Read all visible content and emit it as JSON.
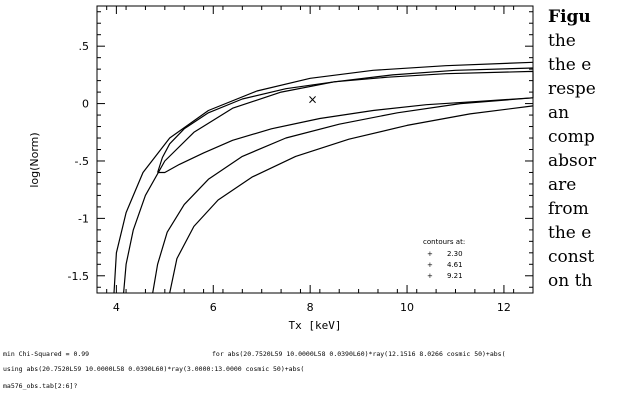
{
  "chart_data": {
    "type": "contour",
    "xlabel": "Tx [keV]",
    "ylabel": "log(Norm)",
    "xlim": [
      3.6,
      12.6
    ],
    "ylim": [
      -1.65,
      0.85
    ],
    "xticks": [
      4,
      6,
      8,
      10,
      12
    ],
    "xtick_labels": [
      "4",
      "6",
      "8",
      "10",
      "12"
    ],
    "yticks": [
      0.5,
      0,
      -0.5,
      -1,
      -1.5
    ],
    "ytick_labels": [
      ".5",
      "0",
      "-.5",
      "-1",
      "-1.5"
    ],
    "best_fit": {
      "x": 8.05,
      "y": 0.03,
      "marker": "×"
    },
    "contour_legend": {
      "title": "contours at:",
      "entries": [
        {
          "marker": "+",
          "label": "2.30"
        },
        {
          "marker": "+",
          "label": "4.61"
        },
        {
          "marker": "+",
          "label": "9.21"
        }
      ]
    },
    "contours": [
      {
        "level": "2.30",
        "points": [
          [
            4.85,
            -0.6
          ],
          [
            4.95,
            -0.47
          ],
          [
            5.1,
            -0.35
          ],
          [
            5.4,
            -0.22
          ],
          [
            5.9,
            -0.08
          ],
          [
            6.6,
            0.04
          ],
          [
            7.5,
            0.13
          ],
          [
            8.5,
            0.19
          ],
          [
            9.6,
            0.23
          ],
          [
            10.8,
            0.26
          ],
          [
            12.6,
            0.28
          ],
          [
            12.6,
            0.05
          ],
          [
            11.5,
            0.02
          ],
          [
            10.4,
            -0.01
          ],
          [
            9.3,
            -0.06
          ],
          [
            8.2,
            -0.13
          ],
          [
            7.2,
            -0.22
          ],
          [
            6.4,
            -0.32
          ],
          [
            5.8,
            -0.43
          ],
          [
            5.3,
            -0.53
          ],
          [
            5.0,
            -0.6
          ],
          [
            4.85,
            -0.6
          ]
        ]
      },
      {
        "level": "4.61",
        "outer": [
          [
            4.15,
            -1.65
          ],
          [
            4.2,
            -1.4
          ],
          [
            4.35,
            -1.1
          ],
          [
            4.6,
            -0.8
          ],
          [
            5.0,
            -0.5
          ],
          [
            5.6,
            -0.25
          ],
          [
            6.4,
            -0.04
          ],
          [
            7.4,
            0.1
          ],
          [
            8.5,
            0.19
          ],
          [
            9.7,
            0.25
          ],
          [
            11.0,
            0.29
          ],
          [
            12.6,
            0.31
          ]
        ],
        "inner": [
          [
            4.75,
            -1.65
          ],
          [
            4.85,
            -1.4
          ],
          [
            5.05,
            -1.12
          ],
          [
            5.4,
            -0.88
          ],
          [
            5.9,
            -0.66
          ],
          [
            6.6,
            -0.46
          ],
          [
            7.5,
            -0.3
          ],
          [
            8.6,
            -0.18
          ],
          [
            9.8,
            -0.08
          ],
          [
            11.1,
            0.0
          ],
          [
            12.6,
            0.05
          ]
        ]
      },
      {
        "level": "9.21",
        "outer": [
          [
            3.95,
            -1.65
          ],
          [
            4.0,
            -1.3
          ],
          [
            4.2,
            -0.95
          ],
          [
            4.55,
            -0.6
          ],
          [
            5.1,
            -0.3
          ],
          [
            5.9,
            -0.06
          ],
          [
            6.9,
            0.11
          ],
          [
            8.0,
            0.22
          ],
          [
            9.3,
            0.29
          ],
          [
            10.8,
            0.33
          ],
          [
            12.6,
            0.36
          ]
        ],
        "inner": [
          [
            5.1,
            -1.65
          ],
          [
            5.25,
            -1.35
          ],
          [
            5.6,
            -1.07
          ],
          [
            6.1,
            -0.84
          ],
          [
            6.8,
            -0.64
          ],
          [
            7.7,
            -0.46
          ],
          [
            8.8,
            -0.31
          ],
          [
            10.0,
            -0.19
          ],
          [
            11.3,
            -0.09
          ],
          [
            12.6,
            -0.02
          ]
        ]
      }
    ]
  },
  "footer": {
    "line1_left": "min Chi-Squared =  0.99",
    "line1_right": "for abs(20.7520L59 10.0000L58 0.0390L60)*ray(12.1516 8.0266 cosmic 50)+abs(",
    "line2": "using abs(20.7520L59 10.0000L58 0.0390L60)*ray(3.0000:13.0000 cosmic 50)+abs(",
    "line3": "ma576_obs.tab[2:6]?"
  },
  "caption": {
    "lines": [
      "Figu",
      "the",
      "the e",
      "respe",
      "an",
      "comp",
      "absor",
      "are",
      "from",
      "the e",
      "const",
      "on th"
    ]
  }
}
